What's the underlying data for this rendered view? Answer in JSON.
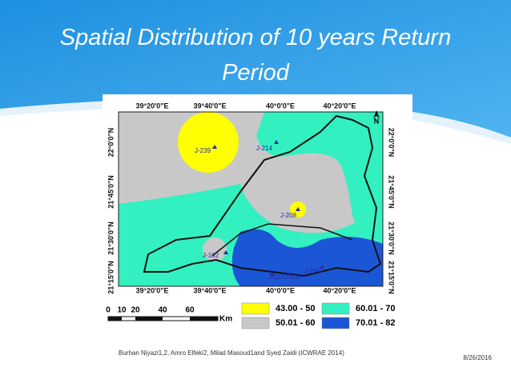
{
  "slide": {
    "title": "Spatial Distribution of 10 years Return Period",
    "map": {
      "lon_labels": [
        "39°20'0\"E",
        "39°40'0\"E",
        "40°0'0\"E",
        "40°20'0\"E"
      ],
      "lat_labels": [
        "22°0'0\"N",
        "21°45'0\"N",
        "21°30'0\"N",
        "21°15'0\"N"
      ],
      "north": "N",
      "stations": [
        "J-239",
        "J-214",
        "J-208",
        "J-102",
        "J-113",
        "J-204",
        "J-205"
      ],
      "scale_labels": [
        "0",
        "10",
        "20",
        "40",
        "60"
      ],
      "scale_unit": "Km"
    },
    "legend": [
      {
        "label": "43.00 - 50",
        "color": "#ffff00"
      },
      {
        "label": "60.01 - 70",
        "color": "#33f0c0"
      },
      {
        "label": "50.01 - 60",
        "color": "#c8c8c8"
      },
      {
        "label": "70.01 - 82",
        "color": "#1a56d6"
      }
    ],
    "footer": "Burhan Niyazi1,2, Amro Elfeki2, Milad Masoud1and Syed Zaidi (ICWRAE 2014)",
    "date": "8/26/2016"
  }
}
